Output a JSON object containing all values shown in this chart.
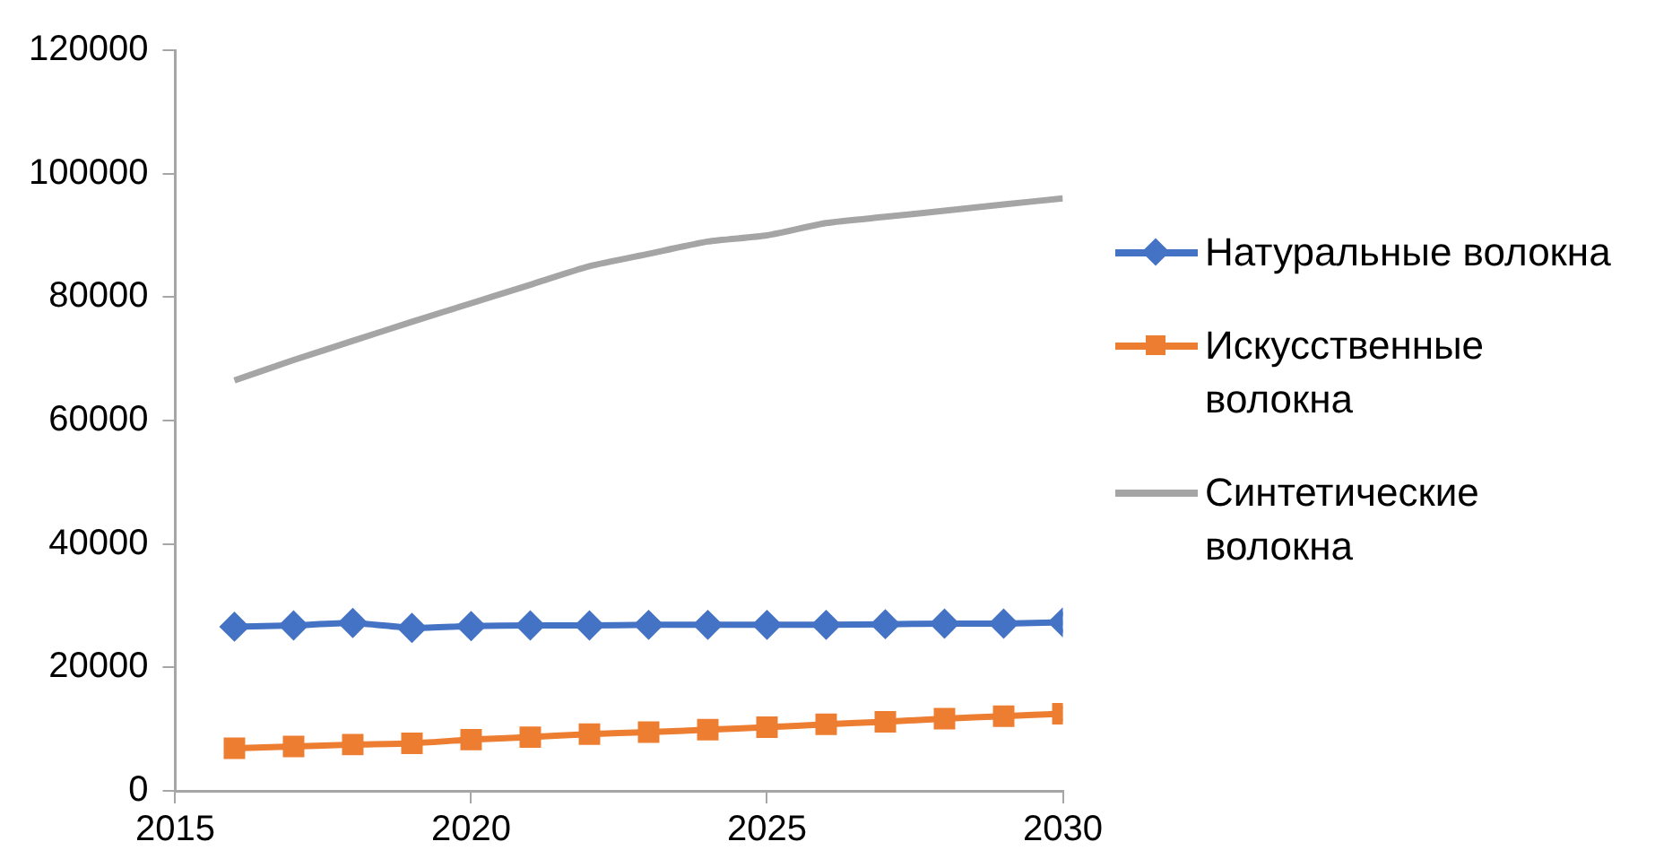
{
  "chart_data": {
    "type": "line",
    "x": [
      2016,
      2017,
      2018,
      2019,
      2020,
      2021,
      2022,
      2023,
      2024,
      2025,
      2026,
      2027,
      2028,
      2029,
      2030
    ],
    "series": [
      {
        "name": "Натуральные волокна",
        "color": "#4472c4",
        "marker": "diamond",
        "values": [
          26600,
          26800,
          27200,
          26400,
          26700,
          26800,
          26800,
          26900,
          26900,
          26900,
          26900,
          27000,
          27100,
          27100,
          27300
        ]
      },
      {
        "name": "Искусственные волокна",
        "color": "#ed7d31",
        "marker": "square",
        "values": [
          6900,
          7200,
          7500,
          7700,
          8300,
          8700,
          9200,
          9500,
          9900,
          10300,
          10800,
          11200,
          11700,
          12100,
          12500
        ]
      },
      {
        "name": "Синтетические волокна",
        "color": "#a5a5a5",
        "marker": "none",
        "values": [
          66500,
          69800,
          72900,
          76000,
          79000,
          82000,
          85000,
          87000,
          89000,
          90000,
          92000,
          93000,
          94000,
          95000,
          96000
        ]
      }
    ],
    "xlim": [
      2015,
      2030
    ],
    "xticks": [
      2015,
      2020,
      2025,
      2030
    ],
    "ylim": [
      0,
      120000
    ],
    "yticks": [
      0,
      20000,
      40000,
      60000,
      80000,
      100000,
      120000
    ],
    "grid": false,
    "legend": "right"
  }
}
